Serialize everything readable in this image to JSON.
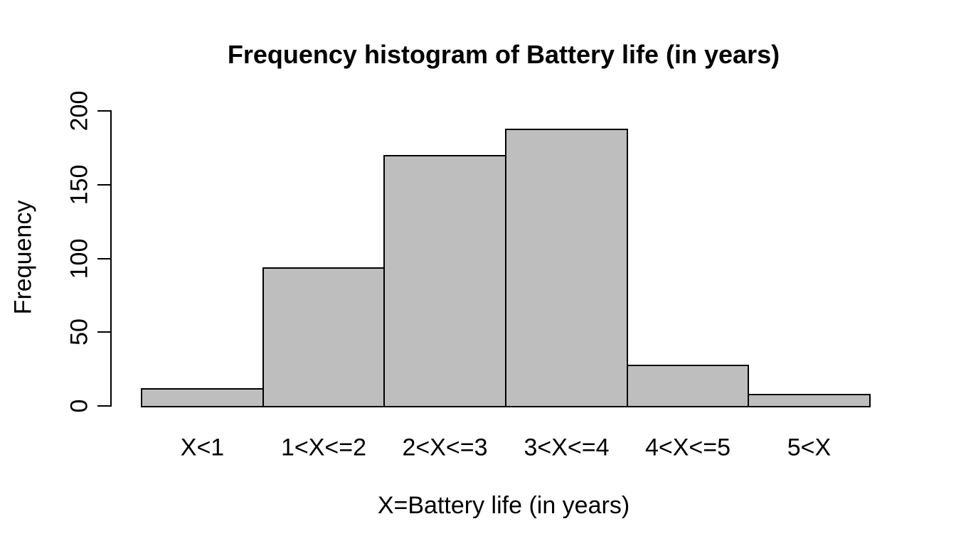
{
  "chart_data": {
    "type": "bar",
    "subtype": "histogram",
    "title": "Frequency histogram of Battery life (in years)",
    "xlabel": "X=Battery life (in years)",
    "ylabel": "Frequency",
    "categories": [
      "X<1",
      "1<X<=2",
      "2<X<=3",
      "3<X<=4",
      "4<X<=5",
      "5<X"
    ],
    "values": [
      12,
      94,
      170,
      188,
      28,
      8
    ],
    "ylim": [
      0,
      200
    ],
    "yticks": [
      0,
      50,
      100,
      150,
      200
    ],
    "grid": false,
    "legend": "none",
    "bar_fill_color": "#BEBEBE",
    "bar_border_color": "#000000",
    "axis_color": "#000000",
    "text_color": "#000000",
    "background_color": "#FFFFFF"
  }
}
